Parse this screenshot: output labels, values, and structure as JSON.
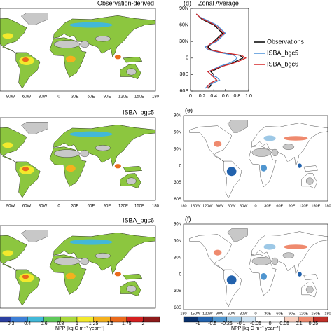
{
  "chart_data": {
    "type": "line",
    "panel_label": "(d)",
    "title": "Zonal Average",
    "y": [
      -55,
      -50,
      -45,
      -40,
      -35,
      -30,
      -25,
      -20,
      -15,
      -10,
      -5,
      0,
      5,
      10,
      15,
      20,
      25,
      30,
      35,
      40,
      45,
      50,
      55,
      60,
      65,
      70,
      75,
      80
    ],
    "series": [
      {
        "name": "Observations",
        "color": "#000000",
        "values": [
          0.3,
          0.35,
          0.35,
          0.45,
          0.4,
          0.4,
          0.35,
          0.45,
          0.55,
          0.7,
          0.8,
          0.9,
          0.85,
          0.55,
          0.35,
          0.3,
          0.35,
          0.4,
          0.45,
          0.5,
          0.55,
          0.5,
          0.45,
          0.4,
          0.3,
          0.2,
          0.15,
          0.1
        ]
      },
      {
        "name": "ISBA_bgc5",
        "color": "#4a90d9",
        "values": [
          0.25,
          0.3,
          0.4,
          0.5,
          0.45,
          0.35,
          0.3,
          0.4,
          0.5,
          0.65,
          0.75,
          0.8,
          0.75,
          0.5,
          0.3,
          0.25,
          0.35,
          0.45,
          0.5,
          0.55,
          0.6,
          0.55,
          0.5,
          0.45,
          0.35,
          0.25,
          0.15,
          0.1
        ]
      },
      {
        "name": "ISBA_bgc6",
        "color": "#d62728",
        "values": [
          0.3,
          0.3,
          0.35,
          0.45,
          0.4,
          0.35,
          0.3,
          0.42,
          0.55,
          0.72,
          0.85,
          0.95,
          0.88,
          0.55,
          0.32,
          0.28,
          0.33,
          0.42,
          0.48,
          0.52,
          0.58,
          0.52,
          0.48,
          0.42,
          0.32,
          0.22,
          0.15,
          0.1
        ]
      }
    ],
    "xlim": [
      0,
      1
    ],
    "xticks": [
      0,
      0.2,
      0.4,
      0.6,
      0.8,
      {
        "value": 1,
        "label": "1.0"
      }
    ],
    "ylim": [
      -60,
      90
    ],
    "yticks": [
      {
        "value": -60,
        "label": "60S"
      },
      {
        "value": -30,
        "label": "30S"
      },
      0,
      {
        "value": 30,
        "label": "30N"
      },
      {
        "value": 60,
        "label": "60N"
      },
      {
        "value": 90,
        "label": "90N"
      }
    ],
    "legend": "right"
  },
  "panels": [
    "Observation-derived",
    "ISBA_bgc5",
    "ISBA_bgc6",
    "(e)",
    "(f)"
  ],
  "lon_left": [
    "90W",
    "60W",
    "30W",
    "0",
    "30E",
    "60E",
    "90E",
    "120E",
    "150E",
    "180"
  ],
  "lon_right": [
    "180",
    "150W",
    "120W",
    "90W",
    "60W",
    "30W",
    "0",
    "30E",
    "60E",
    "90E",
    "120E",
    "150E",
    "180"
  ],
  "lat_right": [
    "90N",
    "60N",
    "30N",
    "0",
    "30S",
    "60S"
  ],
  "colorbar_left": {
    "title": "NPP [kg C m⁻² year⁻¹]",
    "labels": [
      "0.3",
      "0.4",
      "0.6",
      "0.8",
      "1",
      "1.25",
      "1.5",
      "1.75",
      "2"
    ],
    "colors": [
      "#2b3fa0",
      "#3d7fd6",
      "#42b8d8",
      "#5fc85a",
      "#a8d83c",
      "#f2e92c",
      "#f4b11e",
      "#ea6a1c",
      "#d42020",
      "#8e1b1b"
    ]
  },
  "colorbar_right": {
    "title": "NPP [kg C m⁻² year⁻¹]",
    "labels": [
      "-1",
      "-0.5",
      "-0.25",
      "-0.1",
      "-0.05",
      "0",
      "0.05",
      "0.1",
      "0.25"
    ],
    "colors": [
      "#08306b",
      "#2262ad",
      "#4f95cf",
      "#9dc8e6",
      "#d0e4f3",
      "#ffffff",
      "#ffffff",
      "#f8d0c0",
      "#ef8a6e",
      "#c03028"
    ]
  }
}
